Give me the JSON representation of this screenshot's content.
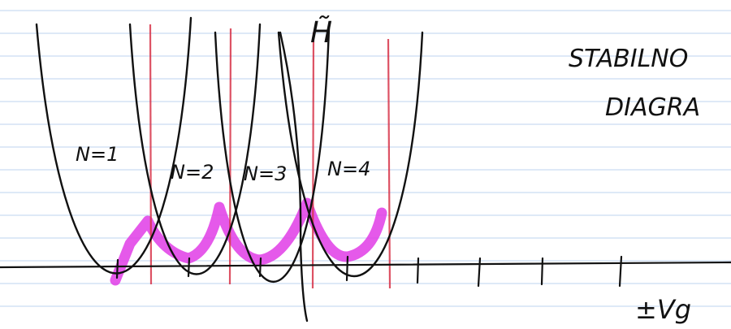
{
  "labels": {
    "n1": "N=1",
    "n2": "N=2",
    "n3": "N=3",
    "n4": "N=4"
  },
  "hamiltonian": "H̃",
  "heading": {
    "line1": "STABILNO",
    "line2": "DIAGRA"
  },
  "axis_label": "±Vg"
}
